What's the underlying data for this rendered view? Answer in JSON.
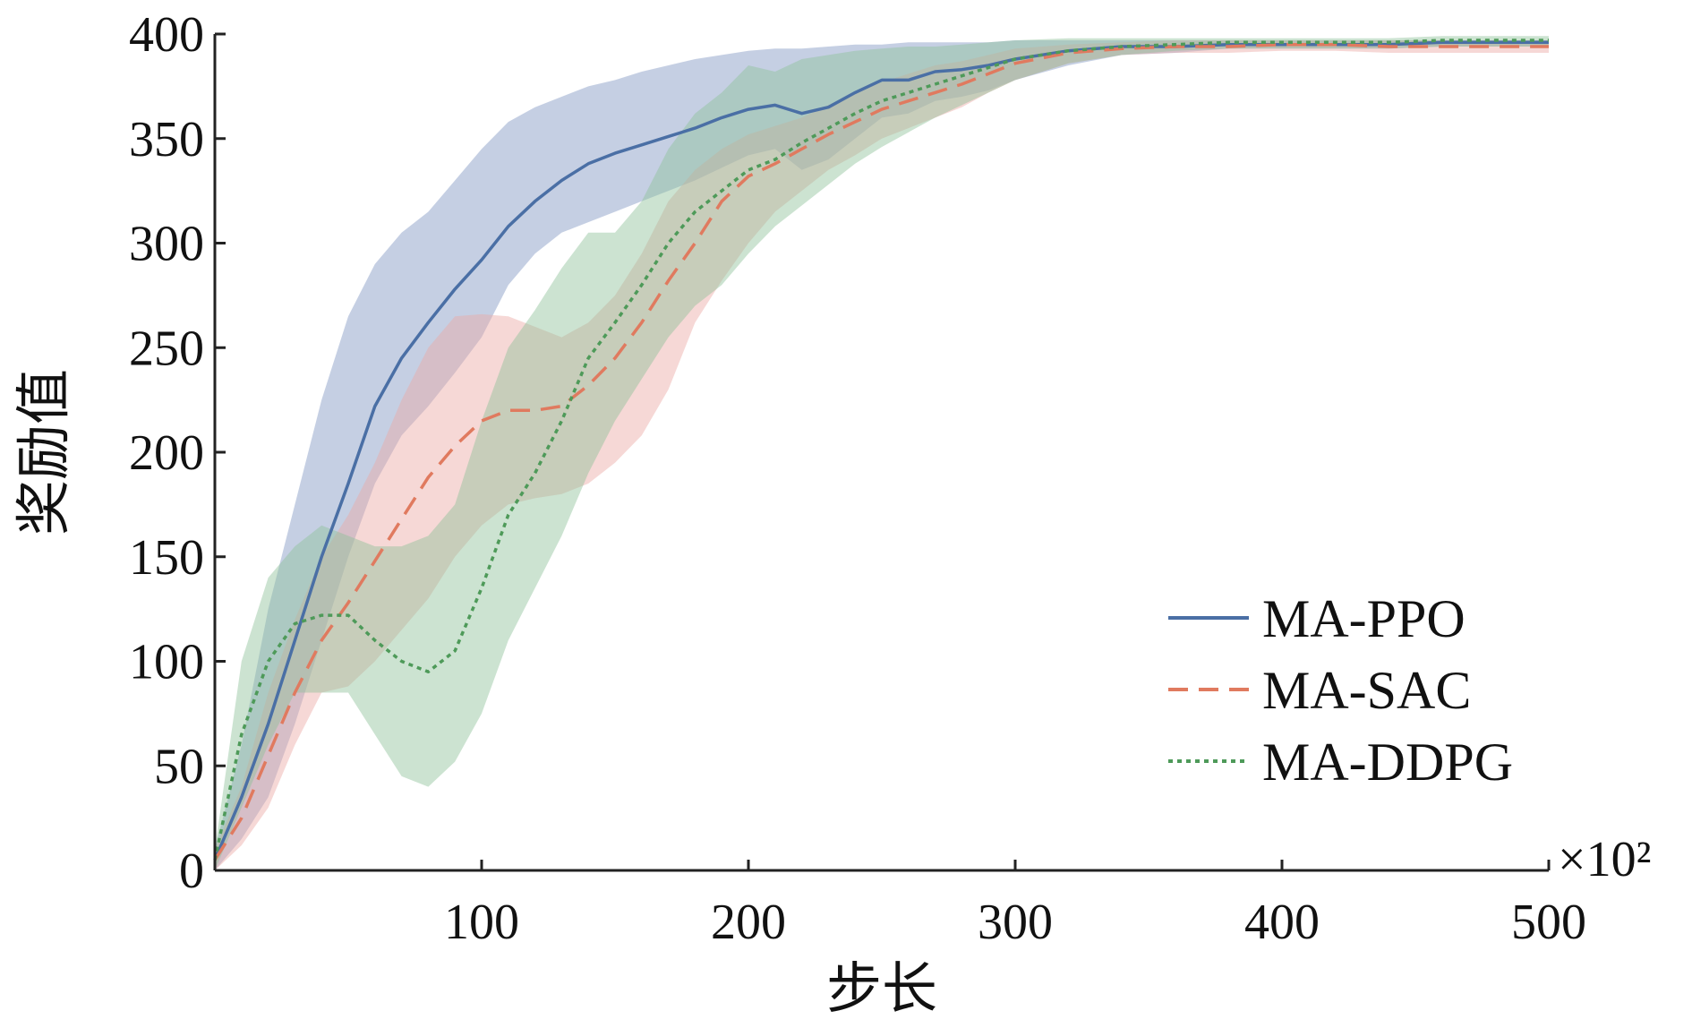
{
  "chart_data": {
    "type": "line",
    "xlabel": "步长",
    "ylabel": "奖励值",
    "x_multiplier": "×10²",
    "xlim": [
      0,
      500
    ],
    "ylim": [
      0,
      400
    ],
    "x_ticks": [
      100,
      200,
      300,
      400,
      500
    ],
    "y_ticks": [
      0,
      50,
      100,
      150,
      200,
      250,
      300,
      350,
      400
    ],
    "legend_position": "lower-right",
    "grid": false,
    "series": [
      {
        "name": "MA-PPO",
        "color": "#4a6fa5",
        "band_color": "#7f95c2",
        "dash": "solid",
        "x": [
          0,
          10,
          20,
          30,
          40,
          50,
          60,
          70,
          80,
          90,
          100,
          110,
          120,
          130,
          140,
          150,
          160,
          170,
          180,
          190,
          200,
          210,
          220,
          230,
          240,
          250,
          260,
          270,
          280,
          290,
          300,
          320,
          340,
          360,
          380,
          400,
          420,
          440,
          460,
          480,
          500
        ],
        "y": [
          5,
          35,
          70,
          110,
          150,
          185,
          222,
          245,
          262,
          278,
          292,
          308,
          320,
          330,
          338,
          343,
          347,
          351,
          355,
          360,
          364,
          366,
          362,
          365,
          372,
          378,
          378,
          382,
          383,
          385,
          388,
          392,
          394,
          394,
          395,
          395,
          395,
          395,
          396,
          396,
          396
        ],
        "lower": [
          0,
          15,
          35,
          70,
          110,
          150,
          185,
          208,
          222,
          238,
          255,
          280,
          295,
          305,
          310,
          315,
          320,
          325,
          330,
          336,
          342,
          345,
          335,
          340,
          350,
          360,
          362,
          368,
          370,
          373,
          378,
          385,
          390,
          391,
          393,
          393,
          393,
          393,
          394,
          394,
          394
        ],
        "upper": [
          10,
          60,
          125,
          175,
          225,
          265,
          290,
          305,
          315,
          330,
          345,
          358,
          365,
          370,
          375,
          378,
          382,
          385,
          388,
          390,
          392,
          393,
          393,
          394,
          395,
          395,
          396,
          396,
          396,
          396,
          397,
          397,
          397,
          397,
          397,
          397,
          397,
          397,
          397,
          397,
          397
        ]
      },
      {
        "name": "MA-SAC",
        "color": "#e07a5f",
        "band_color": "#eba8a4",
        "dash": "dashed",
        "x": [
          0,
          10,
          20,
          30,
          40,
          50,
          60,
          70,
          80,
          90,
          100,
          110,
          120,
          130,
          140,
          150,
          160,
          170,
          180,
          190,
          200,
          210,
          220,
          230,
          240,
          250,
          260,
          270,
          280,
          290,
          300,
          320,
          340,
          360,
          380,
          400,
          420,
          440,
          460,
          480,
          500
        ],
        "y": [
          5,
          25,
          55,
          85,
          110,
          128,
          148,
          168,
          188,
          203,
          215,
          220,
          220,
          222,
          232,
          245,
          262,
          282,
          300,
          320,
          332,
          338,
          345,
          352,
          358,
          364,
          368,
          372,
          376,
          381,
          386,
          391,
          393,
          394,
          394,
          395,
          395,
          394,
          394,
          394,
          394
        ],
        "lower": [
          0,
          12,
          30,
          60,
          85,
          88,
          100,
          115,
          130,
          150,
          165,
          175,
          178,
          180,
          185,
          195,
          208,
          230,
          262,
          282,
          300,
          315,
          325,
          335,
          342,
          350,
          355,
          360,
          365,
          372,
          378,
          386,
          390,
          391,
          391,
          392,
          392,
          391,
          391,
          391,
          391
        ],
        "upper": [
          10,
          40,
          85,
          120,
          150,
          170,
          195,
          225,
          250,
          265,
          266,
          265,
          260,
          255,
          262,
          275,
          295,
          320,
          335,
          345,
          352,
          356,
          360,
          366,
          372,
          377,
          381,
          385,
          387,
          390,
          393,
          395,
          396,
          397,
          397,
          397,
          397,
          397,
          397,
          397,
          397
        ]
      },
      {
        "name": "MA-DDPG",
        "color": "#4e9a59",
        "band_color": "#8fc09a",
        "dash": "dotted",
        "x": [
          0,
          10,
          20,
          30,
          40,
          50,
          60,
          70,
          80,
          90,
          100,
          110,
          120,
          130,
          140,
          150,
          160,
          170,
          180,
          190,
          200,
          210,
          220,
          230,
          240,
          250,
          260,
          270,
          280,
          290,
          300,
          320,
          340,
          360,
          380,
          400,
          420,
          440,
          460,
          480,
          500
        ],
        "y": [
          5,
          65,
          100,
          118,
          122,
          122,
          110,
          100,
          95,
          105,
          135,
          170,
          190,
          215,
          245,
          262,
          280,
          300,
          315,
          325,
          335,
          340,
          348,
          355,
          362,
          368,
          372,
          376,
          380,
          384,
          388,
          392,
          394,
          395,
          396,
          396,
          396,
          396,
          397,
          397,
          397
        ],
        "lower": [
          0,
          30,
          60,
          85,
          85,
          85,
          65,
          45,
          40,
          52,
          75,
          110,
          135,
          160,
          190,
          215,
          235,
          255,
          270,
          280,
          295,
          308,
          318,
          328,
          338,
          346,
          353,
          360,
          366,
          372,
          378,
          386,
          390,
          392,
          393,
          393,
          393,
          393,
          394,
          394,
          394
        ],
        "upper": [
          10,
          100,
          140,
          155,
          165,
          160,
          155,
          155,
          160,
          175,
          215,
          250,
          268,
          288,
          305,
          305,
          320,
          345,
          362,
          372,
          385,
          382,
          388,
          390,
          392,
          393,
          394,
          394,
          395,
          396,
          397,
          398,
          398,
          398,
          398,
          398,
          398,
          398,
          399,
          399,
          399
        ]
      }
    ]
  }
}
